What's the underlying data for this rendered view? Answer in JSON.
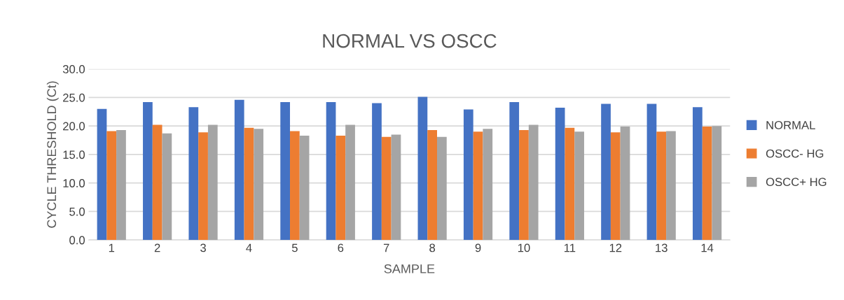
{
  "chart_data": {
    "type": "bar",
    "title": "NORMAL VS OSCC",
    "xlabel": "SAMPLE",
    "ylabel": "CYCLE THRESHOLD (Ct)",
    "categories": [
      "1",
      "2",
      "3",
      "4",
      "5",
      "6",
      "7",
      "8",
      "9",
      "10",
      "11",
      "12",
      "13",
      "14"
    ],
    "series": [
      {
        "name": "NORMAL",
        "color": "#4472c4",
        "values": [
          23.0,
          24.2,
          23.3,
          24.6,
          24.2,
          24.2,
          24.0,
          25.1,
          22.9,
          24.2,
          23.2,
          23.9,
          23.9,
          23.3
        ]
      },
      {
        "name": "OSCC- HG",
        "color": "#ed7d31",
        "values": [
          19.1,
          20.2,
          18.9,
          19.7,
          19.1,
          18.3,
          18.1,
          19.3,
          19.0,
          19.3,
          19.7,
          18.9,
          19.0,
          19.9
        ]
      },
      {
        "name": "OSCC+ HG",
        "color": "#a5a5a5",
        "values": [
          19.3,
          18.7,
          20.2,
          19.5,
          18.3,
          20.2,
          18.5,
          18.1,
          19.5,
          20.2,
          19.0,
          19.9,
          19.1,
          20.0
        ]
      }
    ],
    "ylim": [
      0,
      30
    ],
    "yticks": [
      {
        "value": 0,
        "label": "0.0"
      },
      {
        "value": 5,
        "label": "5.0"
      },
      {
        "value": 10,
        "label": "10.0"
      },
      {
        "value": 15,
        "label": "15.0"
      },
      {
        "value": 20,
        "label": "20.0"
      },
      {
        "value": 25,
        "label": "25.0"
      },
      {
        "value": 30,
        "label": "30.0"
      }
    ],
    "grid": "y",
    "legend": "right"
  }
}
